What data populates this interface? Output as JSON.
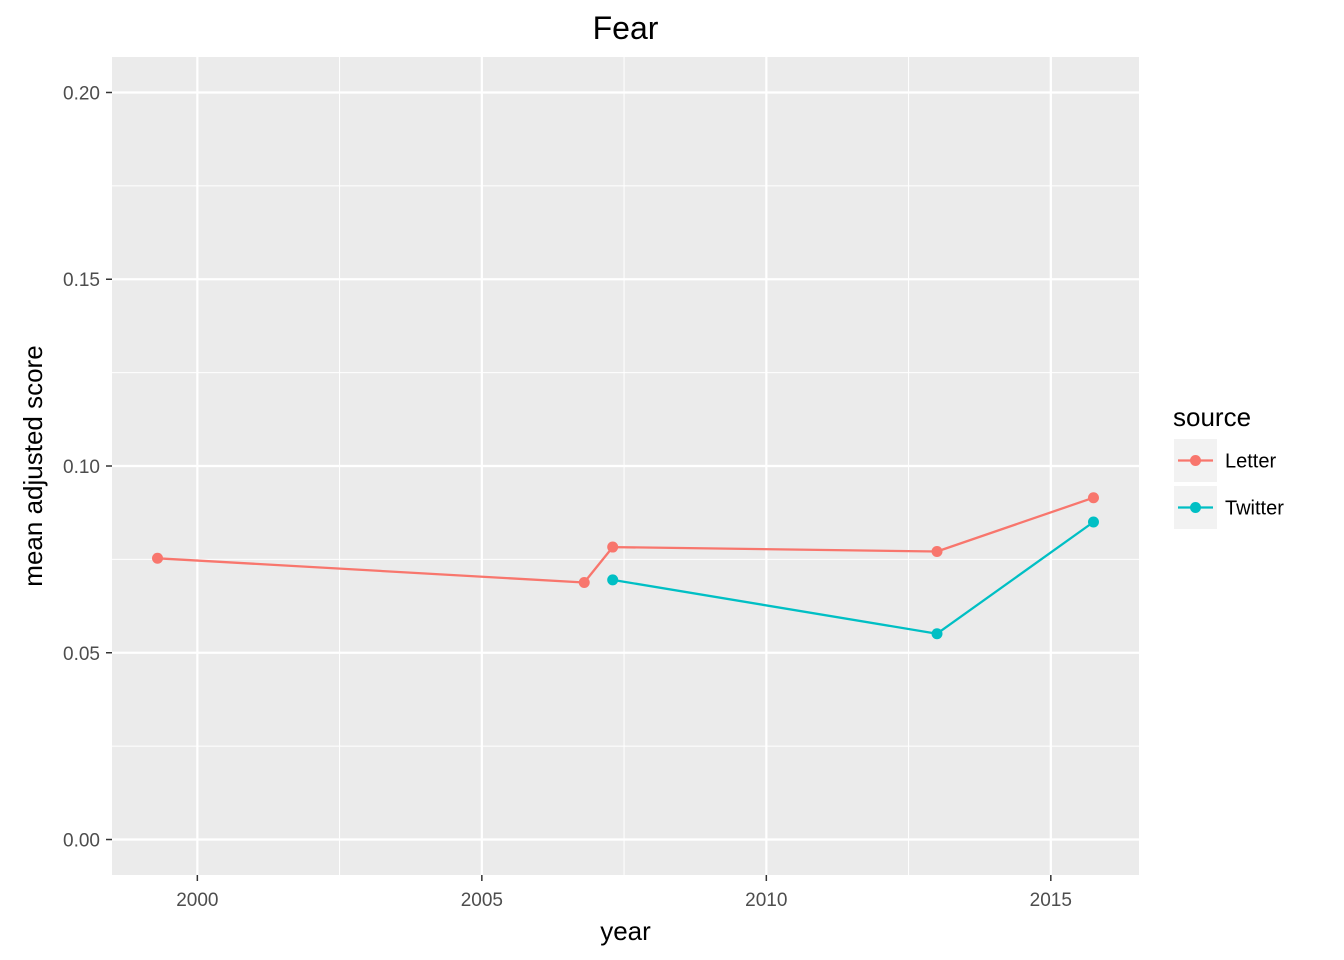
{
  "chart_data": {
    "type": "line",
    "title": "Fear",
    "xlabel": "year",
    "ylabel": "mean adjusted score",
    "xlim": [
      1998.5,
      2016.55
    ],
    "ylim": [
      -0.0095,
      0.2095
    ],
    "x_ticks": [
      2000,
      2005,
      2010,
      2015
    ],
    "x_tick_labels": [
      "2000",
      "2005",
      "2010",
      "2015"
    ],
    "x_minor_ticks": [
      1997.5,
      2002.5,
      2007.5,
      2012.5
    ],
    "y_ticks": [
      0.0,
      0.05,
      0.1,
      0.15,
      0.2
    ],
    "y_tick_labels": [
      "0.00",
      "0.05",
      "0.10",
      "0.15",
      "0.20"
    ],
    "y_minor_ticks": [
      0.025,
      0.075,
      0.125,
      0.175
    ],
    "grid": true,
    "legend": {
      "title": "source",
      "placement": "right"
    },
    "series": [
      {
        "name": "Letter",
        "color": "#F8766D",
        "points": [
          {
            "x": 1999.3,
            "y": 0.0753
          },
          {
            "x": 2006.8,
            "y": 0.0688
          },
          {
            "x": 2007.3,
            "y": 0.0783
          },
          {
            "x": 2013.0,
            "y": 0.0771
          },
          {
            "x": 2015.75,
            "y": 0.0915
          }
        ]
      },
      {
        "name": "Twitter",
        "color": "#00BFC4",
        "points": [
          {
            "x": 2007.3,
            "y": 0.0695
          },
          {
            "x": 2013.0,
            "y": 0.0551
          },
          {
            "x": 2015.75,
            "y": 0.085
          }
        ]
      }
    ]
  }
}
